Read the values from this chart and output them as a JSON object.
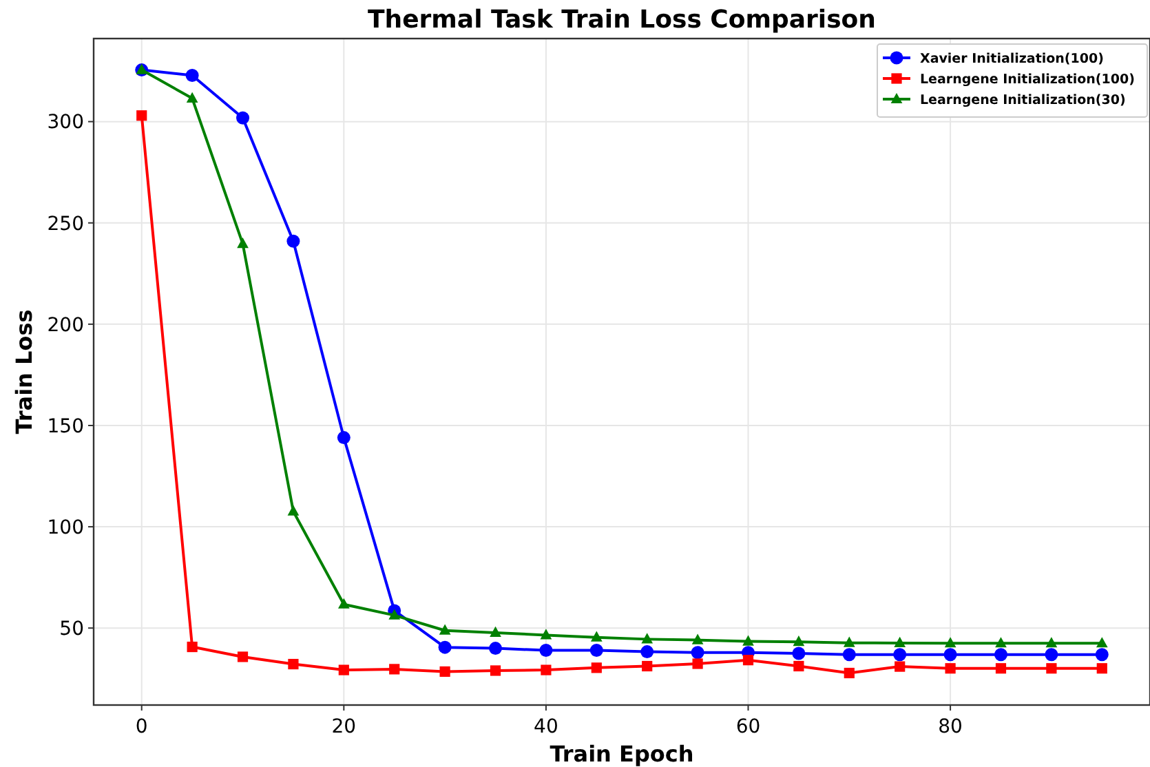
{
  "chart_data": {
    "type": "line",
    "title": "Thermal Task Train Loss Comparison",
    "xlabel": "Train Epoch",
    "ylabel": "Train Loss",
    "x": [
      0,
      5,
      10,
      15,
      20,
      25,
      30,
      35,
      40,
      45,
      50,
      55,
      60,
      65,
      70,
      75,
      80,
      85,
      90,
      95
    ],
    "series": [
      {
        "name": "Xavier Initialization(100)",
        "color": "#0000ff",
        "marker": "circle",
        "values": [
          325.5,
          322.8,
          301.8,
          241,
          144,
          58.6,
          40.5,
          40,
          39,
          39,
          38.3,
          37.9,
          37.9,
          37.5,
          36.9,
          36.9,
          36.9,
          36.9,
          36.9,
          36.9
        ]
      },
      {
        "name": "Learngene Initialization(100)",
        "color": "#ff0000",
        "marker": "square",
        "values": [
          303,
          40.7,
          35.8,
          32.2,
          29.3,
          29.7,
          28.5,
          29,
          29.3,
          30.4,
          31.2,
          32.4,
          34.2,
          31.2,
          27.8,
          31,
          30.1,
          30.1,
          30.1,
          30.1
        ]
      },
      {
        "name": "Learngene Initialization(30)",
        "color": "#008000",
        "marker": "triangle",
        "values": [
          325.5,
          311.5,
          239.7,
          107.6,
          61.7,
          56.3,
          48.8,
          47.7,
          46.5,
          45.4,
          44.5,
          44.1,
          43.4,
          43.2,
          42.7,
          42.6,
          42.5,
          42.5,
          42.5,
          42.5
        ]
      }
    ],
    "xlim": [
      -4.75,
      99.75
    ],
    "xticks": [
      0,
      20,
      40,
      60,
      80
    ],
    "ylim": [
      12,
      341
    ],
    "yticks": [
      50,
      100,
      150,
      200,
      250,
      300
    ],
    "grid": true,
    "legend": "top right",
    "line_style": "solid"
  }
}
